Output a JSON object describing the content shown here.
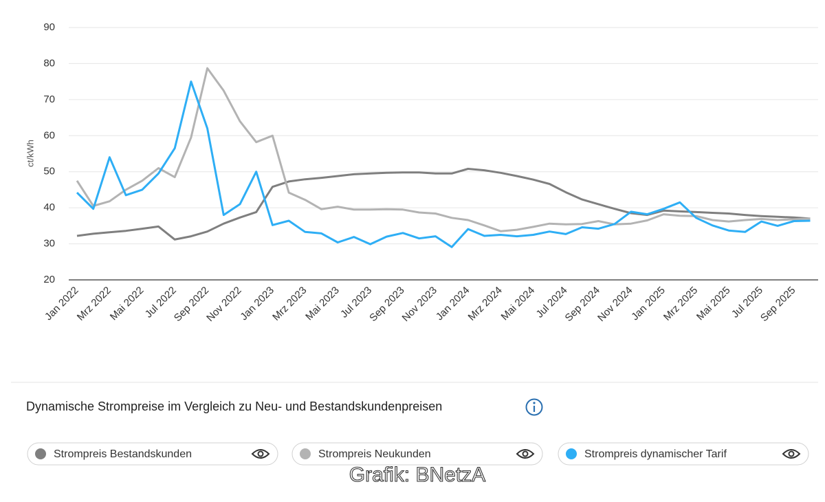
{
  "chart_data": {
    "type": "line",
    "y_label": "ct/kWh",
    "title": "Dynamische Strompreise im Vergleich zu Neu- und Bestandskundenpreisen",
    "source": "Grafik: BNetzA",
    "categories": [
      "Jan 2022",
      null,
      "Mrz 2022",
      null,
      "Mai 2022",
      null,
      "Jul 2022",
      null,
      "Sep 2022",
      null,
      "Nov 2022",
      null,
      "Jan 2023",
      null,
      "Mrz 2023",
      null,
      "Mai 2023",
      null,
      "Jul 2023",
      null,
      "Sep 2023",
      null,
      "Nov 2023",
      null,
      "Jan 2024",
      null,
      "Mrz 2024",
      null,
      "Mai 2024",
      null,
      "Jul 2024",
      null,
      "Sep 2024",
      null,
      "Nov 2024",
      null,
      "Jan 2025",
      null,
      "Mrz 2025",
      null,
      "Mai 2025",
      null,
      "Jul 2025",
      null,
      "Sep 2025",
      null
    ],
    "series": [
      {
        "name": "Strompreis Bestandskunden",
        "color": "#7f7f7f",
        "values": [
          32.2,
          32.8,
          33.2,
          33.6,
          34.2,
          34.8,
          31.2,
          32.1,
          33.4,
          35.6,
          37.3,
          38.8,
          45.8,
          47.3,
          47.9,
          48.3,
          48.8,
          49.3,
          49.5,
          49.7,
          49.8,
          49.8,
          49.5,
          49.5,
          50.8,
          50.4,
          49.7,
          48.8,
          47.8,
          46.6,
          44.3,
          42.3,
          41,
          39.7,
          38.5,
          38,
          39.2,
          39,
          38.8,
          38.6,
          38.4,
          38,
          37.7,
          37.5,
          37.3,
          37
        ]
      },
      {
        "name": "Strompreis Neukunden",
        "color": "#b3b3b3",
        "values": [
          47.5,
          40.5,
          41.8,
          45,
          47.5,
          51,
          48.5,
          59.5,
          78.7,
          72.5,
          64,
          58.2,
          60,
          44.2,
          42.2,
          39.6,
          40.3,
          39.5,
          39.5,
          39.6,
          39.5,
          38.7,
          38.4,
          37.2,
          36.6,
          35.1,
          33.5,
          33.9,
          34.7,
          35.6,
          35.4,
          35.5,
          36.3,
          35.4,
          35.6,
          36.5,
          38.2,
          37.8,
          37.7,
          36.6,
          36.2,
          36.6,
          36.9,
          36.6,
          36.8,
          37
        ]
      },
      {
        "name": "Strompreis dynamischer Tarif",
        "color": "#2eaef5",
        "values": [
          44.2,
          39.7,
          54,
          43.5,
          45,
          49.5,
          56.5,
          75,
          62,
          38,
          41,
          50,
          35.2,
          36.4,
          33.3,
          32.9,
          30.4,
          31.9,
          29.9,
          32,
          33,
          31.5,
          32.1,
          29.1,
          34.1,
          32.2,
          32.5,
          32.1,
          32.5,
          33.4,
          32.7,
          34.6,
          34.2,
          35.5,
          38.9,
          38.2,
          39.7,
          41.5,
          37.2,
          35.1,
          33.7,
          33.3,
          36.2,
          35,
          36.3,
          36.4
        ]
      }
    ],
    "ylim": [
      20,
      90
    ],
    "yticks": [
      20,
      30,
      40,
      50,
      60,
      70,
      80,
      90
    ],
    "grid": true
  }
}
